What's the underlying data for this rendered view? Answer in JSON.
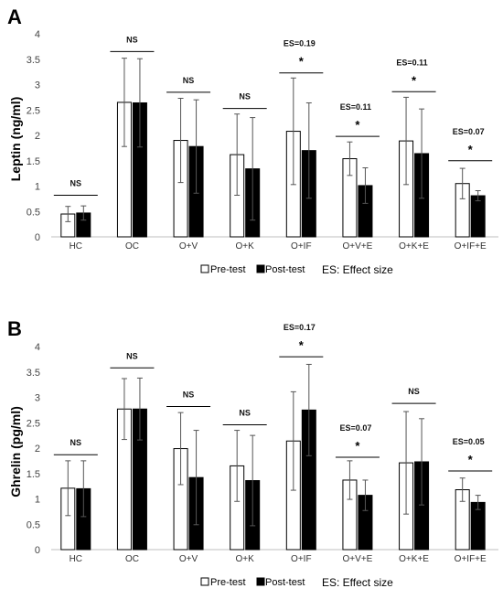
{
  "chart_data": [
    {
      "type": "bar",
      "panel": "A",
      "ylabel": "Leptin (ng/ml)",
      "ylim": [
        0,
        4
      ],
      "yticks": [
        "0",
        "0.5",
        "1",
        "1.5",
        "2",
        "2.5",
        "3",
        "3.5",
        "4"
      ],
      "grid": false,
      "legend_position": "bottom",
      "categories": [
        "HC",
        "OC",
        "O+V",
        "O+K",
        "O+IF",
        "O+V+E",
        "O+K+E",
        "O+IF+E"
      ],
      "series": [
        {
          "name": "Pre-test",
          "values": [
            0.45,
            2.65,
            1.9,
            1.62,
            2.08,
            1.54,
            1.89,
            1.05
          ],
          "errors": [
            0.15,
            0.87,
            0.83,
            0.8,
            1.05,
            0.33,
            0.86,
            0.3
          ]
        },
        {
          "name": "Post-test",
          "values": [
            0.47,
            2.64,
            1.78,
            1.34,
            1.7,
            1.01,
            1.64,
            0.81
          ],
          "errors": [
            0.14,
            0.87,
            0.92,
            1.01,
            0.94,
            0.35,
            0.88,
            0.1
          ]
        }
      ],
      "annotations": [
        {
          "category": "HC",
          "label": "NS",
          "bar": 0.82
        },
        {
          "category": "OC",
          "label": "NS",
          "bar": 3.65
        },
        {
          "category": "O+V",
          "label": "NS",
          "bar": 2.85
        },
        {
          "category": "O+K",
          "label": "NS",
          "bar": 2.53
        },
        {
          "category": "O+IF",
          "label": "*",
          "es": "ES=0.19",
          "bar": 3.23
        },
        {
          "category": "O+V+E",
          "label": "*",
          "es": "ES=0.11",
          "bar": 1.98
        },
        {
          "category": "O+K+E",
          "label": "*",
          "es": "ES=0.11",
          "bar": 2.86
        },
        {
          "category": "O+IF+E",
          "label": "*",
          "es": "ES=0.07",
          "bar": 1.5
        }
      ],
      "legend": [
        "Pre-test",
        "Post-test"
      ],
      "note": "ES: Effect size"
    },
    {
      "type": "bar",
      "panel": "B",
      "ylabel": "Ghrelin (pg/ml)",
      "ylim": [
        0,
        4
      ],
      "yticks": [
        "0",
        "0.5",
        "1",
        "1.5",
        "2",
        "2.5",
        "3",
        "3.5",
        "4"
      ],
      "grid": false,
      "legend_position": "bottom",
      "categories": [
        "HC",
        "OC",
        "O+V",
        "O+K",
        "O+IF",
        "O+V+E",
        "O+K+E",
        "O+IF+E"
      ],
      "series": [
        {
          "name": "Pre-test",
          "values": [
            1.21,
            2.77,
            1.99,
            1.65,
            2.14,
            1.37,
            1.71,
            1.18
          ],
          "errors": [
            0.54,
            0.6,
            0.71,
            0.7,
            0.97,
            0.38,
            1.01,
            0.23
          ]
        },
        {
          "name": "Post-test",
          "values": [
            1.2,
            2.77,
            1.42,
            1.36,
            2.75,
            1.07,
            1.73,
            0.93
          ],
          "errors": [
            0.55,
            0.61,
            0.93,
            0.89,
            0.9,
            0.3,
            0.85,
            0.14
          ]
        }
      ],
      "annotations": [
        {
          "category": "HC",
          "label": "NS",
          "bar": 1.87
        },
        {
          "category": "OC",
          "label": "NS",
          "bar": 3.58
        },
        {
          "category": "O+V",
          "label": "NS",
          "bar": 2.82
        },
        {
          "category": "O+K",
          "label": "NS",
          "bar": 2.46
        },
        {
          "category": "O+IF",
          "label": "*",
          "es": "ES=0.17",
          "bar": 3.8
        },
        {
          "category": "O+V+E",
          "label": "*",
          "es": "ES=0.07",
          "bar": 1.82
        },
        {
          "category": "O+K+E",
          "label": "NS",
          "bar": 2.88
        },
        {
          "category": "O+IF+E",
          "label": "*",
          "es": "ES=0.05",
          "bar": 1.55
        }
      ],
      "legend": [
        "Pre-test",
        "Post-test"
      ],
      "note": "ES: Effect size"
    }
  ]
}
